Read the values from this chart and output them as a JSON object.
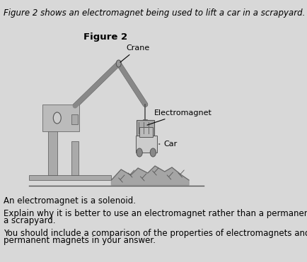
{
  "bg_color": "#d8d8d8",
  "title_text": "Figure 2 shows an electromagnet being used to lift a car in a scrapyard.",
  "figure_label": "Figure 2",
  "label_crane": "Crane",
  "label_electromagnet": "Electromagnet",
  "label_car": "Car",
  "text1": "An electromagnet is a solenoid.",
  "text2": "Explain why it is better to use an electromagnet rather than a permanent mag",
  "text2b": "a scrapyard.",
  "text3": "You should include a comparison of the properties of electromagnets and",
  "text3b": "permanent magnets in your answer.",
  "title_fontsize": 8.5,
  "body_fontsize": 8.5,
  "figure_label_fontsize": 9.5
}
